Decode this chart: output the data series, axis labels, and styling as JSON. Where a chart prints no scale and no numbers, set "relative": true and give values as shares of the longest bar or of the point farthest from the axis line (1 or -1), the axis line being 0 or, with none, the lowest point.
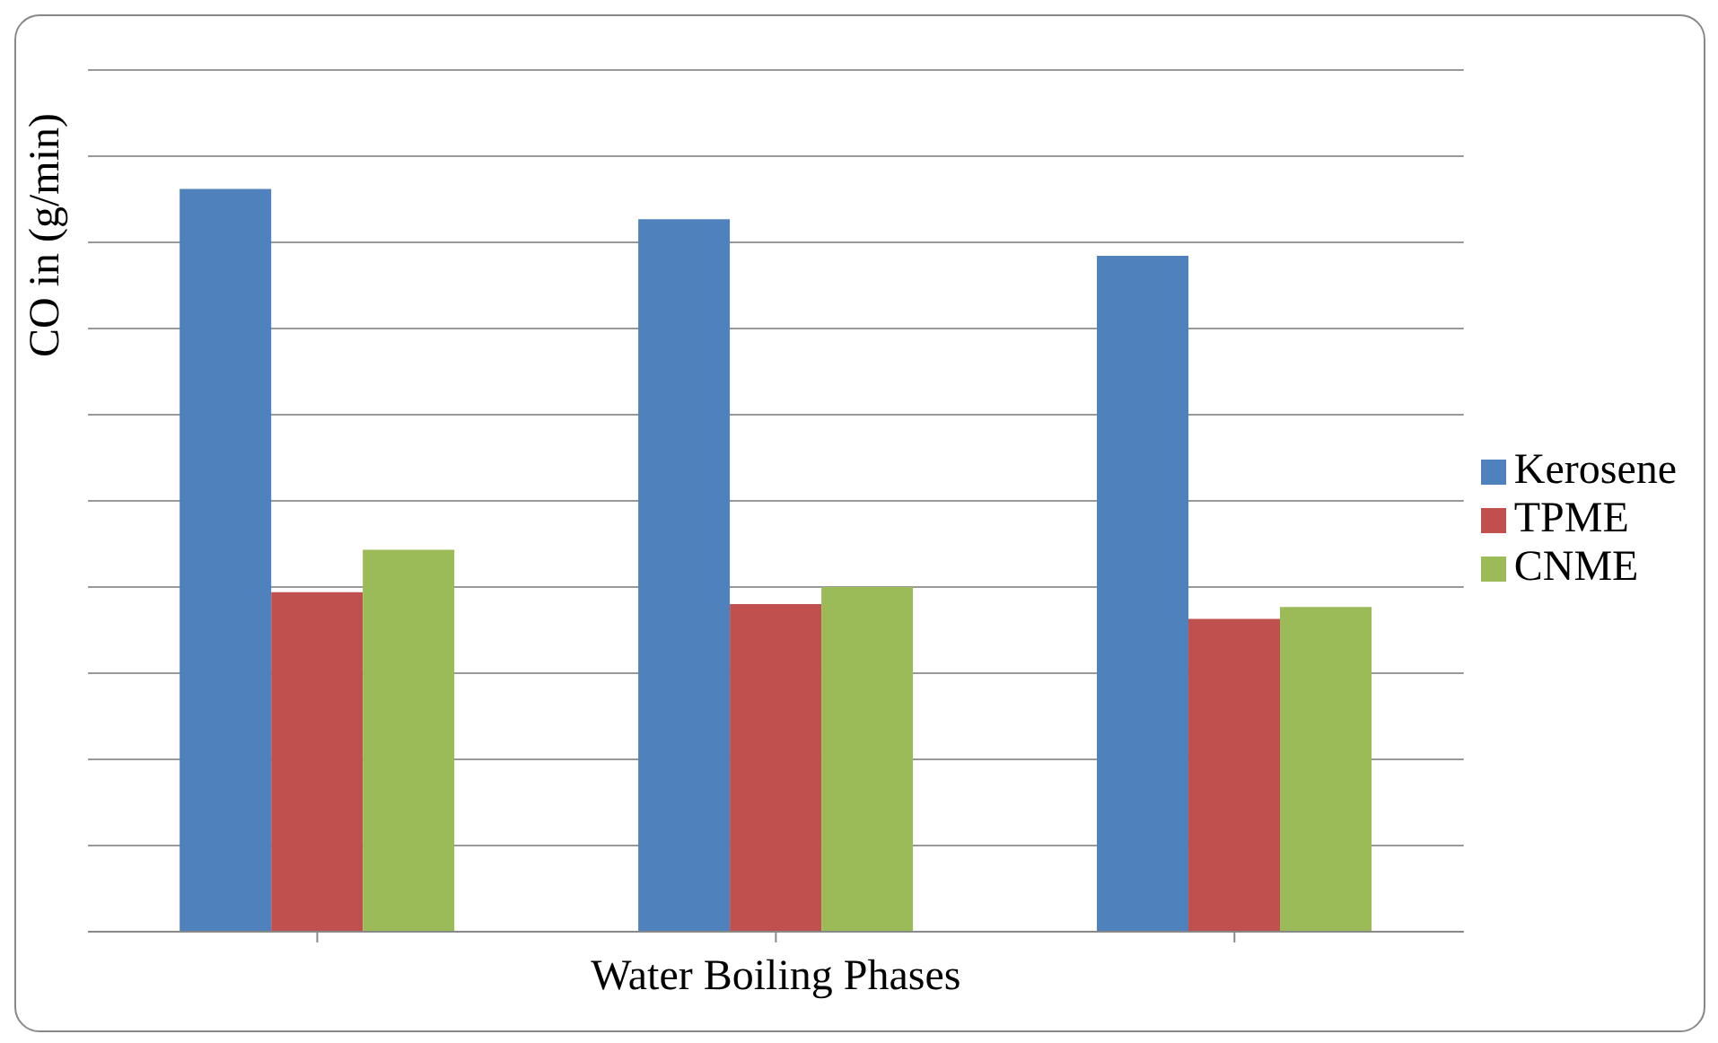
{
  "chart_data": {
    "type": "bar",
    "relative": true,
    "ylabel": "CO in (g/min)",
    "xlabel": "Water Boiling Phases",
    "categories": [
      null,
      null,
      null
    ],
    "grid": "y",
    "legend": "right",
    "series": [
      {
        "name": "Kerosene",
        "color": "#4f81bd",
        "values": [
          1,
          0.959,
          0.91
        ]
      },
      {
        "name": "TPME",
        "color": "#c0504d",
        "values": [
          0.457,
          0.441,
          0.421
        ]
      },
      {
        "name": "CNME",
        "color": "#9bbb59",
        "values": [
          0.514,
          0.464,
          0.437
        ]
      }
    ]
  }
}
